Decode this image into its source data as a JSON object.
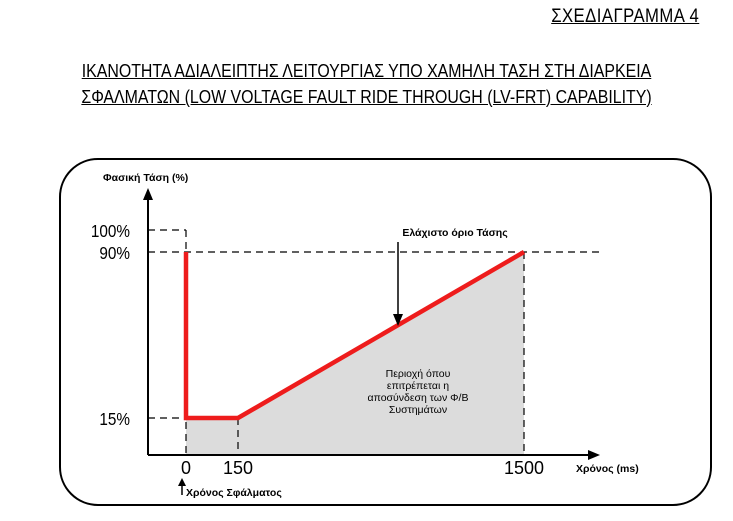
{
  "header": {
    "diagram_label": "ΣΧΕΔΙΑΓΡΑΜΜΑ 4",
    "title_line1": "ΙΚΑΝΟΤΗΤΑ ΑΔΙΑΛΕΙΠΤΗΣ ΛΕΙΤΟΥΡΓΙΑΣ ΥΠΟ ΧΑΜΗΛΗ ΤΑΣΗ ΣΤΗ ΔΙΑΡΚΕΙΑ",
    "title_line2": "ΣΦΑΛΜΑΤΩΝ (LOW VOLTAGE FAULT RIDE THROUGH (LV-FRT) CAPABILITY)"
  },
  "chart_data": {
    "type": "line",
    "ylabel": "Φασική Τάση (%)",
    "xlabel": "Χρόνος (ms)",
    "y_ticks": [
      "100%",
      "90%",
      "15%"
    ],
    "y_tick_values": [
      100,
      90,
      15
    ],
    "x_ticks": [
      "0",
      "150",
      "1500"
    ],
    "x_tick_values": [
      0,
      150,
      1500
    ],
    "series": [
      {
        "name": "Ελάχιστο όριο Τάσης",
        "x": [
          0,
          0,
          150,
          1500
        ],
        "y": [
          90,
          15,
          15,
          90
        ]
      }
    ],
    "region_label_lines": [
      "Περιοχή όπου",
      "επιτρέπεται η",
      "αποσύνδεση των Φ/Β",
      "Συστημάτων"
    ],
    "fault_label": "Χρόνος Σφάλματος",
    "colors": {
      "curve": "#ee1c1c",
      "region": "#dcdcdc"
    }
  }
}
